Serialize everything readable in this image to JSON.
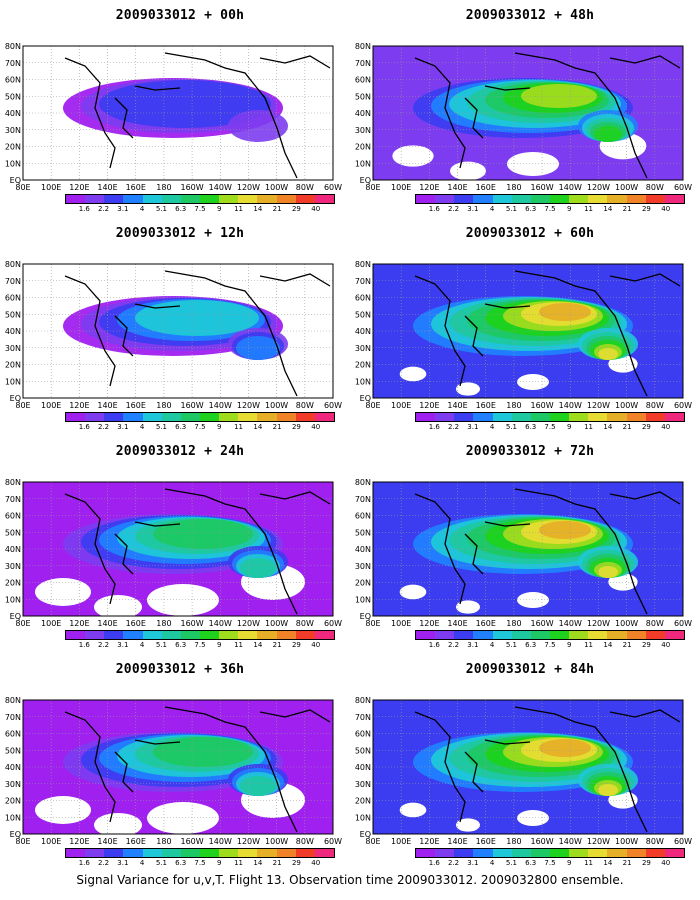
{
  "panels": [
    {
      "title": "2009033012 + 00h",
      "coverage": "low"
    },
    {
      "title": "2009033012 + 12h",
      "coverage": "low-mid"
    },
    {
      "title": "2009033012 + 24h",
      "coverage": "mid"
    },
    {
      "title": "2009033012 + 36h",
      "coverage": "mid"
    },
    {
      "title": "2009033012 + 48h",
      "coverage": "mid-high"
    },
    {
      "title": "2009033012 + 60h",
      "coverage": "high"
    },
    {
      "title": "2009033012 + 72h",
      "coverage": "high"
    },
    {
      "title": "2009033012 + 84h",
      "coverage": "high"
    }
  ],
  "lon_labels": [
    "80E",
    "100E",
    "120E",
    "140E",
    "160E",
    "180",
    "160W",
    "140W",
    "120W",
    "100W",
    "80W",
    "60W"
  ],
  "lat_labels": [
    "80N",
    "70N",
    "60N",
    "50N",
    "40N",
    "30N",
    "20N",
    "10N",
    "EQ"
  ],
  "colorbar": {
    "labels": [
      "1.6",
      "2.2",
      "3.1",
      "4",
      "5.1",
      "6.3",
      "7.5",
      "9",
      "11",
      "14",
      "21",
      "29",
      "40"
    ],
    "colors": [
      "#a020f0",
      "#7d3cf0",
      "#3c3cf0",
      "#2080ff",
      "#1ec8d8",
      "#1ec8a0",
      "#1ec864",
      "#1ed21e",
      "#a0dc1e",
      "#e6dc32",
      "#e6af28",
      "#f08228",
      "#f03c28",
      "#f0287d"
    ]
  },
  "caption": "Signal Variance for u,v,T. Flight 13. Observation time 2009033012. 2009032800 ensemble."
}
